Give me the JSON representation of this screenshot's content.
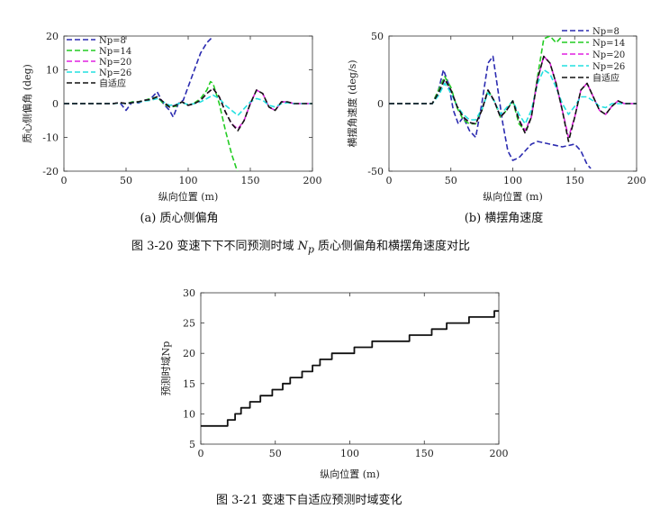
{
  "figure_3_20": {
    "caption_prefix": "图 3-20  变速下下不同预测时域 ",
    "caption_symbol": "N",
    "caption_subscript": "p",
    "caption_suffix": " 质心侧偏角和横摆角速度对比"
  },
  "figure_3_21": {
    "caption": "图 3-21  变速下自适应预测时域变化"
  },
  "chart_data": [
    {
      "type": "line",
      "id": "a",
      "subcaption": "(a)  质心侧偏角",
      "xlabel": "纵向位置 (m)",
      "ylabel": "质心侧偏角 (deg)",
      "xlim": [
        0,
        200
      ],
      "ylim": [
        -20,
        20
      ],
      "xticks": [
        "0",
        "50",
        "100",
        "150",
        "200"
      ],
      "yticks": [
        "-20",
        "-10",
        "0",
        "10",
        "20"
      ],
      "xtick_values": [
        0,
        50,
        100,
        150,
        200
      ],
      "ytick_values": [
        -20,
        -10,
        0,
        10,
        20
      ],
      "legend_position": "top-left",
      "series": [
        {
          "name": "Np=8",
          "color": "#2b2bb0",
          "x": [
            0,
            40,
            45,
            50,
            55,
            60,
            65,
            70,
            75,
            80,
            85,
            88,
            92,
            96,
            100,
            105,
            110,
            115,
            119
          ],
          "y": [
            0,
            0,
            0.3,
            -2,
            0.5,
            0.2,
            1,
            1.5,
            3.5,
            0,
            -2,
            -4,
            0,
            1,
            5,
            10,
            15,
            18,
            19.5
          ]
        },
        {
          "name": "Np=14",
          "color": "#22cc22",
          "x": [
            0,
            40,
            45,
            50,
            55,
            60,
            65,
            70,
            75,
            80,
            85,
            90,
            95,
            100,
            105,
            110,
            115,
            118,
            120,
            125,
            130,
            135,
            140
          ],
          "y": [
            0,
            0,
            0.3,
            0,
            0.5,
            0.6,
            1,
            1.5,
            2,
            0,
            -1,
            -0.8,
            0.5,
            -0.5,
            0.2,
            1.5,
            4,
            6.5,
            6,
            0,
            -8,
            -15,
            -20.5
          ]
        },
        {
          "name": "Np=20",
          "color": "#e020e0",
          "x": [
            0,
            40,
            45,
            50,
            55,
            60,
            65,
            70,
            75,
            80,
            85,
            90,
            95,
            100,
            105,
            110,
            115,
            120,
            125,
            130,
            135,
            140,
            145,
            150,
            155,
            160,
            165,
            170,
            175,
            180,
            185,
            190,
            200
          ],
          "y": [
            0,
            0,
            0.3,
            0,
            0.3,
            0.5,
            1,
            1.2,
            2,
            0.5,
            -1,
            -0.5,
            0.5,
            -0.5,
            0,
            1,
            3,
            4.5,
            2,
            -2.5,
            -6,
            -7.5,
            -5,
            0,
            4,
            3,
            -1,
            -2,
            0.5,
            0.5,
            0,
            0,
            0
          ]
        },
        {
          "name": "Np=26",
          "color": "#22e0e0",
          "x": [
            0,
            40,
            45,
            50,
            55,
            60,
            65,
            70,
            75,
            80,
            85,
            90,
            95,
            100,
            105,
            110,
            115,
            120,
            125,
            130,
            135,
            140,
            145,
            150,
            155,
            160,
            165,
            170,
            175,
            180,
            185,
            190,
            200
          ],
          "y": [
            0,
            0,
            0.2,
            0,
            0.3,
            0.4,
            0.8,
            1,
            1.5,
            0.5,
            -0.5,
            -0.3,
            0.3,
            -0.3,
            0,
            0.5,
            1.5,
            2.5,
            1.5,
            -0.5,
            -2,
            -3.5,
            -1.5,
            0.5,
            1.5,
            1,
            -0.5,
            -1,
            0,
            0.3,
            0,
            0,
            0
          ]
        },
        {
          "name": "自适应",
          "color": "#111111",
          "x": [
            0,
            40,
            45,
            50,
            55,
            60,
            65,
            70,
            75,
            80,
            85,
            90,
            95,
            100,
            105,
            110,
            115,
            120,
            125,
            130,
            135,
            140,
            145,
            150,
            155,
            160,
            165,
            170,
            175,
            180,
            185,
            190,
            200
          ],
          "y": [
            0,
            0,
            0.3,
            0,
            0.3,
            0.5,
            1,
            1.2,
            2,
            0.5,
            -1,
            -0.5,
            0.5,
            -0.5,
            0,
            1,
            3,
            4.5,
            2,
            -2.5,
            -6,
            -8,
            -5,
            0,
            4,
            3,
            -1,
            -2,
            0.5,
            0.5,
            0,
            0,
            0
          ]
        }
      ]
    },
    {
      "type": "line",
      "id": "b",
      "subcaption": "(b)  横摆角速度",
      "xlabel": "纵向位置 (m)",
      "ylabel": "横摆角速度 (deg/s)",
      "xlim": [
        0,
        200
      ],
      "ylim": [
        -50,
        50
      ],
      "xticks": [
        "0",
        "50",
        "100",
        "150",
        "200"
      ],
      "yticks": [
        "-50",
        "0",
        "50"
      ],
      "xtick_values": [
        0,
        50,
        100,
        150,
        200
      ],
      "ytick_values": [
        -50,
        0,
        50
      ],
      "legend_position": "top-right",
      "series": [
        {
          "name": "Np=8",
          "color": "#2b2bb0",
          "x": [
            0,
            35,
            40,
            44,
            48,
            52,
            56,
            60,
            65,
            70,
            75,
            80,
            84,
            88,
            92,
            96,
            100,
            105,
            110,
            115,
            120,
            130,
            140,
            150,
            155,
            160,
            163
          ],
          "y": [
            0,
            0,
            10,
            25,
            15,
            -5,
            -15,
            -10,
            -20,
            -25,
            0,
            30,
            35,
            10,
            -15,
            -35,
            -42,
            -40,
            -35,
            -30,
            -28,
            -30,
            -32,
            -30,
            -35,
            -45,
            -48
          ]
        },
        {
          "name": "Np=14",
          "color": "#22cc22",
          "x": [
            0,
            35,
            40,
            45,
            50,
            55,
            60,
            65,
            70,
            75,
            80,
            85,
            90,
            95,
            100,
            105,
            110,
            115,
            120,
            125,
            130,
            135,
            140
          ],
          "y": [
            0,
            0,
            10,
            20,
            12,
            -3,
            -12,
            -15,
            -15,
            -5,
            10,
            2,
            -10,
            -5,
            2,
            -15,
            -20,
            -10,
            20,
            48,
            50,
            45,
            50
          ]
        },
        {
          "name": "Np=20",
          "color": "#e020e0",
          "x": [
            0,
            35,
            40,
            45,
            50,
            55,
            60,
            65,
            70,
            75,
            80,
            85,
            90,
            95,
            100,
            105,
            110,
            115,
            120,
            125,
            130,
            135,
            140,
            145,
            150,
            155,
            160,
            165,
            170,
            175,
            180,
            185,
            190,
            200
          ],
          "y": [
            0,
            0,
            8,
            18,
            10,
            -2,
            -10,
            -14,
            -15,
            -5,
            10,
            2,
            -10,
            -5,
            2,
            -12,
            -20,
            -10,
            18,
            35,
            30,
            15,
            -5,
            -25,
            -10,
            10,
            15,
            5,
            -5,
            -8,
            -2,
            2,
            0,
            0
          ]
        },
        {
          "name": "Np=26",
          "color": "#22e0e0",
          "x": [
            0,
            35,
            40,
            45,
            50,
            55,
            60,
            65,
            70,
            75,
            80,
            85,
            90,
            95,
            100,
            105,
            110,
            115,
            120,
            125,
            130,
            135,
            140,
            145,
            150,
            155,
            160,
            165,
            170,
            175,
            180,
            185,
            190,
            200
          ],
          "y": [
            0,
            0,
            6,
            15,
            8,
            -2,
            -8,
            -12,
            -12,
            -4,
            8,
            2,
            -8,
            -3,
            2,
            -8,
            -15,
            -5,
            15,
            25,
            22,
            12,
            0,
            -8,
            -2,
            5,
            5,
            2,
            -2,
            -3,
            0,
            0,
            0,
            0
          ]
        },
        {
          "name": "自适应",
          "color": "#111111",
          "x": [
            0,
            35,
            40,
            45,
            50,
            55,
            60,
            65,
            70,
            75,
            80,
            85,
            90,
            95,
            100,
            105,
            110,
            115,
            120,
            125,
            130,
            135,
            140,
            145,
            150,
            155,
            160,
            165,
            170,
            175,
            180,
            185,
            190,
            200
          ],
          "y": [
            0,
            0,
            8,
            18,
            10,
            -2,
            -10,
            -14,
            -15,
            -5,
            10,
            2,
            -10,
            -5,
            2,
            -12,
            -22,
            -10,
            18,
            35,
            30,
            15,
            -5,
            -28,
            -10,
            10,
            15,
            5,
            -5,
            -8,
            -2,
            2,
            0,
            0
          ]
        }
      ]
    },
    {
      "type": "line",
      "id": "c",
      "xlabel": "纵向位置 (m)",
      "ylabel": "预测时域Np",
      "xlim": [
        0,
        200
      ],
      "ylim": [
        5,
        30
      ],
      "xticks": [
        "0",
        "50",
        "100",
        "150",
        "200"
      ],
      "yticks": [
        "5",
        "10",
        "15",
        "20",
        "25",
        "30"
      ],
      "xtick_values": [
        0,
        50,
        100,
        150,
        200
      ],
      "ytick_values": [
        5,
        10,
        15,
        20,
        25,
        30
      ],
      "series": [
        {
          "name": "Np",
          "color": "#111111",
          "step": true,
          "x": [
            0,
            18,
            23,
            27,
            33,
            40,
            48,
            55,
            60,
            68,
            75,
            80,
            88,
            95,
            103,
            115,
            125,
            140,
            155,
            165,
            180,
            197,
            200
          ],
          "y": [
            8,
            9,
            10,
            11,
            12,
            13,
            14,
            15,
            16,
            17,
            18,
            19,
            20,
            20,
            21,
            22,
            22,
            23,
            24,
            25,
            26,
            27,
            27
          ]
        }
      ]
    }
  ]
}
